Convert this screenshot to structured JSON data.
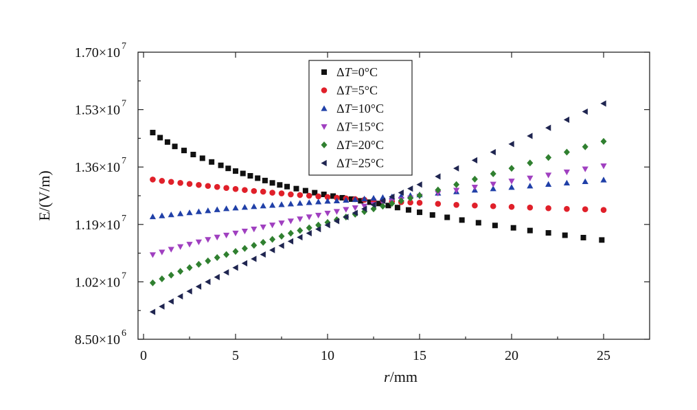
{
  "chart_data": {
    "type": "scatter",
    "title": "",
    "xlabel_italic": "r",
    "xlabel_rest": "/mm",
    "ylabel": "E/(V/m)",
    "xlim": [
      -0.3,
      27.5
    ],
    "ylim": [
      8500000,
      17000000
    ],
    "x_ticks": [
      0,
      5,
      10,
      15,
      20,
      25
    ],
    "x_tick_labels": [
      "0",
      "5",
      "10",
      "15",
      "20",
      "25"
    ],
    "y_ticks": [
      8500000,
      10200000,
      11900000,
      13600000,
      15300000,
      17000000
    ],
    "y_tick_labels": [
      {
        "mantissa": "8.50×10",
        "exp": "6"
      },
      {
        "mantissa": "1.02×10",
        "exp": "7"
      },
      {
        "mantissa": "1.19×10",
        "exp": "7"
      },
      {
        "mantissa": "1.36×10",
        "exp": "7"
      },
      {
        "mantissa": "1.53×10",
        "exp": "7"
      },
      {
        "mantissa": "1.70×10",
        "exp": "7"
      }
    ],
    "grid": false,
    "legend_position": "top-center",
    "legend_prefix": "Δ",
    "legend_italic": "T",
    "series": [
      {
        "name": "ΔT=0°C",
        "label_rest": "=0°C",
        "marker": "square",
        "color": "#111111",
        "x": [
          0.5,
          0.9,
          1.3,
          1.7,
          2.2,
          2.7,
          3.2,
          3.7,
          4.2,
          4.6,
          5.0,
          5.4,
          5.8,
          6.2,
          6.6,
          7.0,
          7.4,
          7.8,
          8.3,
          8.8,
          9.3,
          9.8,
          10.3,
          10.8,
          11.3,
          11.8,
          12.3,
          12.8,
          13.3,
          13.8,
          14.4,
          15.0,
          15.7,
          16.5,
          17.3,
          18.2,
          19.1,
          20.1,
          21.0,
          22.0,
          22.9,
          23.9,
          24.9
        ],
        "y": [
          14620000,
          14470000,
          14340000,
          14210000,
          14090000,
          13970000,
          13860000,
          13750000,
          13650000,
          13560000,
          13480000,
          13410000,
          13340000,
          13270000,
          13200000,
          13130000,
          13070000,
          13020000,
          12960000,
          12900000,
          12840000,
          12790000,
          12740000,
          12690000,
          12650000,
          12600000,
          12560000,
          12520000,
          12460000,
          12400000,
          12330000,
          12260000,
          12180000,
          12110000,
          12030000,
          11950000,
          11870000,
          11800000,
          11720000,
          11650000,
          11580000,
          11510000,
          11440000
        ]
      },
      {
        "name": "ΔT=5°C",
        "label_rest": "=5°C",
        "marker": "circle",
        "color": "#e0202a",
        "x": [
          0.5,
          1.0,
          1.5,
          2.0,
          2.5,
          3.0,
          3.5,
          4.0,
          4.5,
          5.0,
          5.5,
          6.0,
          6.5,
          7.0,
          7.5,
          8.0,
          8.5,
          9.0,
          9.5,
          10.0,
          10.5,
          11.0,
          11.5,
          12.0,
          12.5,
          13.0,
          13.5,
          14.0,
          14.5,
          15.0,
          16.0,
          17.0,
          18.0,
          19.0,
          20.0,
          21.0,
          22.0,
          23.0,
          24.0,
          25.0
        ],
        "y": [
          13230000,
          13190000,
          13160000,
          13130000,
          13100000,
          13070000,
          13040000,
          13010000,
          12980000,
          12950000,
          12920000,
          12890000,
          12870000,
          12840000,
          12820000,
          12790000,
          12770000,
          12750000,
          12730000,
          12710000,
          12690000,
          12670000,
          12650000,
          12630000,
          12610000,
          12600000,
          12580000,
          12560000,
          12550000,
          12540000,
          12510000,
          12480000,
          12460000,
          12440000,
          12420000,
          12400000,
          12380000,
          12360000,
          12350000,
          12330000
        ]
      },
      {
        "name": "ΔT=10°C",
        "label_rest": "=10°C",
        "marker": "triangle-up",
        "color": "#2040a8",
        "x": [
          0.5,
          1.0,
          1.5,
          2.0,
          2.5,
          3.0,
          3.5,
          4.0,
          4.5,
          5.0,
          5.5,
          6.0,
          6.5,
          7.0,
          7.5,
          8.0,
          8.5,
          9.0,
          9.5,
          10.0,
          10.5,
          11.0,
          11.5,
          12.0,
          12.5,
          13.0,
          13.5,
          14.0,
          14.5,
          15.0,
          16.0,
          17.0,
          18.0,
          19.0,
          20.0,
          21.0,
          22.0,
          23.0,
          24.0,
          25.0
        ],
        "y": [
          12130000,
          12160000,
          12190000,
          12220000,
          12250000,
          12280000,
          12310000,
          12340000,
          12370000,
          12390000,
          12410000,
          12430000,
          12450000,
          12470000,
          12490000,
          12510000,
          12530000,
          12550000,
          12570000,
          12590000,
          12600000,
          12620000,
          12640000,
          12660000,
          12680000,
          12700000,
          12720000,
          12740000,
          12760000,
          12780000,
          12830000,
          12870000,
          12920000,
          12960000,
          13000000,
          13040000,
          13090000,
          13130000,
          13170000,
          13220000
        ]
      },
      {
        "name": "ΔT=15°C",
        "label_rest": "=15°C",
        "marker": "triangle-down",
        "color": "#a040c0",
        "x": [
          0.5,
          1.0,
          1.5,
          2.0,
          2.5,
          3.0,
          3.5,
          4.0,
          4.5,
          5.0,
          5.5,
          6.0,
          6.5,
          7.0,
          7.5,
          8.0,
          8.5,
          9.0,
          9.5,
          10.0,
          10.5,
          11.0,
          11.5,
          12.0,
          12.5,
          13.0,
          13.5,
          14.0,
          14.5,
          15.0,
          16.0,
          17.0,
          18.0,
          19.0,
          20.0,
          21.0,
          22.0,
          23.0,
          24.0,
          25.0
        ],
        "y": [
          11000000,
          11080000,
          11160000,
          11240000,
          11310000,
          11380000,
          11450000,
          11520000,
          11580000,
          11640000,
          11700000,
          11760000,
          11820000,
          11880000,
          11940000,
          12000000,
          12060000,
          12120000,
          12170000,
          12230000,
          12280000,
          12340000,
          12390000,
          12440000,
          12490000,
          12540000,
          12590000,
          12640000,
          12680000,
          12730000,
          12820000,
          12910000,
          13000000,
          13090000,
          13180000,
          13270000,
          13360000,
          13450000,
          13540000,
          13630000
        ]
      },
      {
        "name": "ΔT=20°C",
        "label_rest": "=20°C",
        "marker": "diamond",
        "color": "#308030",
        "x": [
          0.5,
          1.0,
          1.5,
          2.0,
          2.5,
          3.0,
          3.5,
          4.0,
          4.5,
          5.0,
          5.5,
          6.0,
          6.5,
          7.0,
          7.5,
          8.0,
          8.5,
          9.0,
          9.5,
          10.0,
          10.5,
          11.0,
          11.5,
          12.0,
          12.5,
          13.0,
          13.5,
          14.0,
          14.5,
          15.0,
          16.0,
          17.0,
          18.0,
          19.0,
          20.0,
          21.0,
          22.0,
          23.0,
          24.0,
          25.0
        ],
        "y": [
          10170000,
          10290000,
          10400000,
          10510000,
          10620000,
          10720000,
          10820000,
          10920000,
          11010000,
          11100000,
          11190000,
          11280000,
          11370000,
          11460000,
          11550000,
          11640000,
          11720000,
          11800000,
          11880000,
          11960000,
          12040000,
          12120000,
          12200000,
          12280000,
          12360000,
          12440000,
          12520000,
          12600000,
          12680000,
          12760000,
          12920000,
          13080000,
          13240000,
          13400000,
          13560000,
          13720000,
          13880000,
          14040000,
          14200000,
          14360000
        ]
      },
      {
        "name": "ΔT=25°C",
        "label_rest": "=25°C",
        "marker": "triangle-left",
        "color": "#1f2550",
        "x": [
          0.5,
          1.0,
          1.5,
          2.0,
          2.5,
          3.0,
          3.5,
          4.0,
          4.5,
          5.0,
          5.5,
          6.0,
          6.5,
          7.0,
          7.5,
          8.0,
          8.5,
          9.0,
          9.5,
          10.0,
          10.5,
          11.0,
          11.5,
          12.0,
          12.5,
          13.0,
          13.5,
          14.0,
          14.5,
          15.0,
          16.0,
          17.0,
          18.0,
          19.0,
          20.0,
          21.0,
          22.0,
          23.0,
          24.0,
          25.0
        ],
        "y": [
          9310000,
          9470000,
          9620000,
          9770000,
          9920000,
          10060000,
          10200000,
          10340000,
          10480000,
          10620000,
          10750000,
          10880000,
          11010000,
          11140000,
          11270000,
          11400000,
          11520000,
          11640000,
          11760000,
          11880000,
          12000000,
          12120000,
          12240000,
          12360000,
          12480000,
          12600000,
          12720000,
          12840000,
          12960000,
          13080000,
          13320000,
          13560000,
          13800000,
          14040000,
          14280000,
          14520000,
          14760000,
          15000000,
          15240000,
          15480000
        ]
      }
    ]
  }
}
